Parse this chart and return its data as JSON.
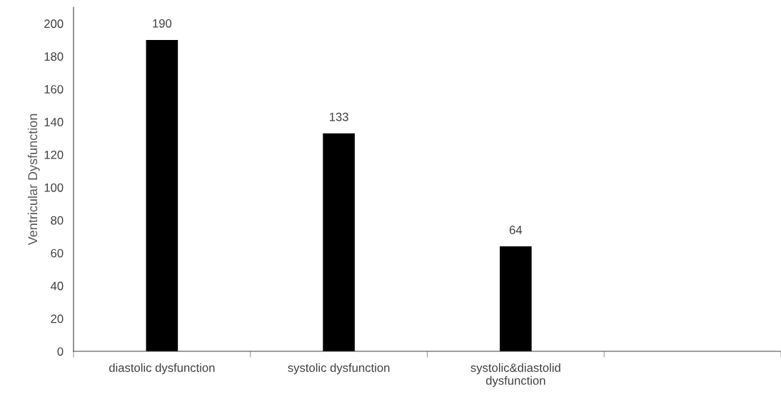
{
  "chart_data": {
    "type": "bar",
    "ylabel": "Ventricular Dysfunction",
    "categories": [
      "diastolic dysfunction",
      "systolic dysfunction",
      "systolic&diastolid\ndysfunction",
      null
    ],
    "values": [
      190,
      133,
      64,
      null
    ],
    "color": "#000000",
    "ylim": [
      0,
      210
    ],
    "yticks": [
      0,
      20,
      40,
      60,
      80,
      100,
      120,
      140,
      160,
      180,
      200
    ],
    "data_labels": true,
    "grid": false
  }
}
